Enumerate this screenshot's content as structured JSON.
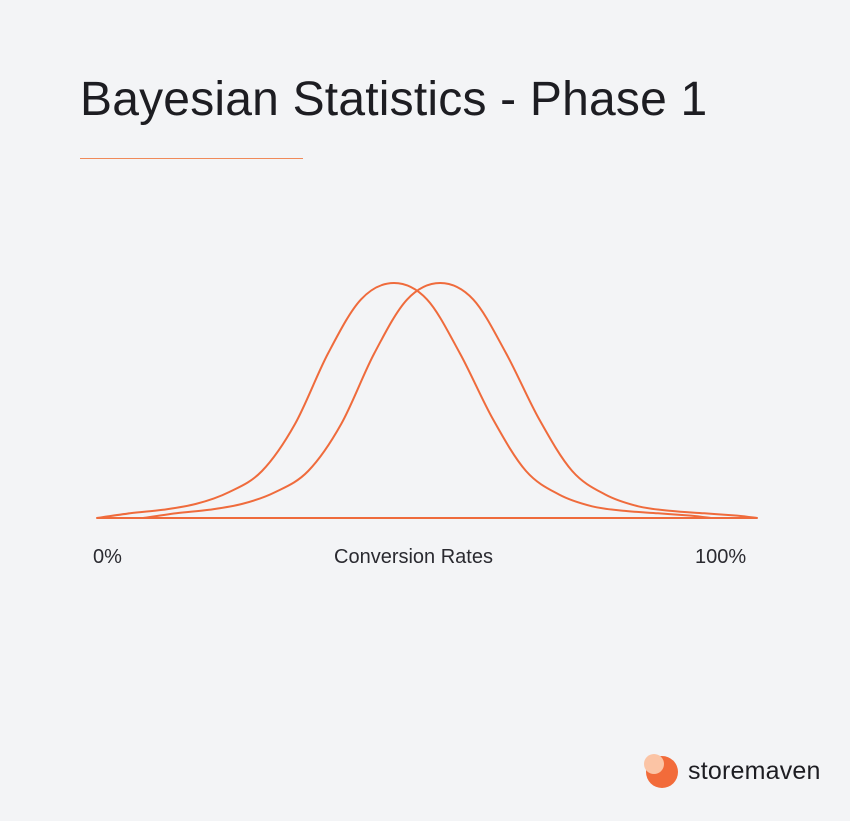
{
  "header": {
    "title": "Bayesian Statistics - Phase 1"
  },
  "colors": {
    "background": "#f3f4f6",
    "accent": "#f26b3a",
    "curve": "#ef6b3c",
    "rule": "#f08a5a"
  },
  "chart_data": {
    "type": "line",
    "title": "Bayesian Statistics - Phase 1",
    "xlabel": "Conversion Rates",
    "ylabel": "",
    "xlim": [
      0,
      100
    ],
    "tick_labels": {
      "min": "0%",
      "max": "100%"
    },
    "grid": false,
    "series": [
      {
        "x": [
          0,
          5,
          10,
          15,
          20,
          25,
          30,
          35,
          40,
          45,
          50,
          55,
          60,
          65,
          70,
          75,
          80,
          85,
          90,
          93
        ],
        "values": [
          0,
          2,
          3.5,
          6,
          11,
          20,
          40,
          70,
          93,
          100,
          93,
          70,
          42,
          20,
          10,
          5,
          3,
          2,
          1,
          0
        ]
      },
      {
        "x": [
          7,
          12,
          17,
          22,
          27,
          32,
          37,
          42,
          47,
          52,
          57,
          62,
          67,
          72,
          77,
          82,
          87,
          92,
          97,
          100
        ],
        "values": [
          0,
          2,
          3.5,
          6,
          11,
          20,
          40,
          70,
          93,
          100,
          93,
          70,
          42,
          20,
          10,
          5,
          3,
          2,
          1,
          0
        ]
      }
    ]
  },
  "brand": {
    "name": "storemaven"
  }
}
